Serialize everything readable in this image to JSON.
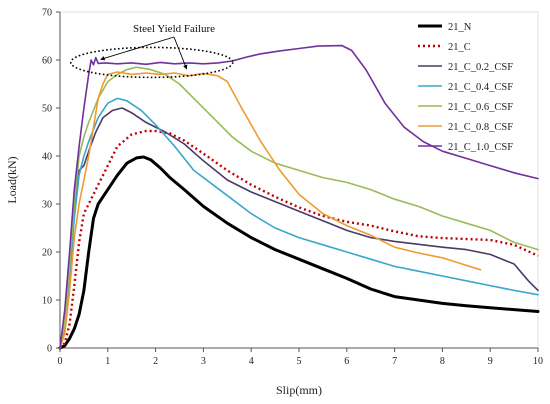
{
  "chart_data": {
    "type": "line",
    "xlabel": "Slip(mm)",
    "ylabel": "Load(kN)",
    "xlim": [
      0,
      10
    ],
    "ylim": [
      0,
      70
    ],
    "xticks": [
      0,
      1,
      2,
      3,
      4,
      5,
      6,
      7,
      8,
      9,
      10
    ],
    "yticks": [
      0,
      10,
      20,
      30,
      40,
      50,
      60,
      70
    ],
    "grid": false,
    "legend_position": "top-right",
    "annotation": {
      "text": "Steel Yield Failure",
      "points": [
        [
          0.85,
          59.5
        ],
        [
          2.65,
          57.5
        ]
      ],
      "ellipse_center": [
        1.92,
        59.5
      ]
    },
    "series": [
      {
        "name": "21_N",
        "color": "#000000",
        "width": 3,
        "dash": "",
        "points": [
          [
            0,
            0
          ],
          [
            0.1,
            0.5
          ],
          [
            0.2,
            2
          ],
          [
            0.3,
            4
          ],
          [
            0.4,
            7
          ],
          [
            0.5,
            12
          ],
          [
            0.6,
            20
          ],
          [
            0.7,
            27
          ],
          [
            0.8,
            30
          ],
          [
            1.0,
            33
          ],
          [
            1.2,
            36
          ],
          [
            1.4,
            38.5
          ],
          [
            1.6,
            39.6
          ],
          [
            1.75,
            39.8
          ],
          [
            1.9,
            39.2
          ],
          [
            2.1,
            37.5
          ],
          [
            2.3,
            35.5
          ],
          [
            2.6,
            33
          ],
          [
            3.0,
            29.5
          ],
          [
            3.5,
            26
          ],
          [
            4.0,
            23
          ],
          [
            4.5,
            20.5
          ],
          [
            5.0,
            18.5
          ],
          [
            5.5,
            16.5
          ],
          [
            6.0,
            14.5
          ],
          [
            6.5,
            12.3
          ],
          [
            7.0,
            10.7
          ],
          [
            7.5,
            10
          ],
          [
            8.0,
            9.3
          ],
          [
            8.5,
            8.8
          ],
          [
            9.0,
            8.4
          ],
          [
            9.5,
            8
          ],
          [
            10.0,
            7.6
          ]
        ]
      },
      {
        "name": "21_C",
        "color": "#c00000",
        "width": 2.4,
        "dash": "2 3",
        "points": [
          [
            0,
            0
          ],
          [
            0.1,
            1
          ],
          [
            0.2,
            5
          ],
          [
            0.3,
            13
          ],
          [
            0.4,
            22
          ],
          [
            0.5,
            28
          ],
          [
            0.6,
            30
          ],
          [
            0.8,
            34
          ],
          [
            1.0,
            38
          ],
          [
            1.2,
            42
          ],
          [
            1.5,
            44.5
          ],
          [
            1.8,
            45.2
          ],
          [
            2.0,
            45.2
          ],
          [
            2.3,
            44.7
          ],
          [
            2.6,
            43.2
          ],
          [
            3.0,
            40.5
          ],
          [
            3.5,
            37
          ],
          [
            4.0,
            34
          ],
          [
            4.5,
            31.5
          ],
          [
            5.0,
            29.3
          ],
          [
            5.5,
            27.5
          ],
          [
            6.0,
            26.3
          ],
          [
            6.5,
            25.5
          ],
          [
            7.0,
            24.3
          ],
          [
            7.5,
            23.3
          ],
          [
            8.0,
            22.9
          ],
          [
            8.5,
            22.7
          ],
          [
            9.0,
            22.5
          ],
          [
            9.5,
            21.5
          ],
          [
            10.0,
            19.2
          ]
        ]
      },
      {
        "name": "21_C_0.2_CSF",
        "color": "#4a3a6a",
        "width": 1.6,
        "dash": "",
        "points": [
          [
            0,
            0
          ],
          [
            0.1,
            4
          ],
          [
            0.2,
            14
          ],
          [
            0.3,
            28
          ],
          [
            0.4,
            37
          ],
          [
            0.5,
            38
          ],
          [
            0.6,
            41
          ],
          [
            0.75,
            45
          ],
          [
            0.9,
            48
          ],
          [
            1.1,
            49.5
          ],
          [
            1.3,
            50
          ],
          [
            1.5,
            49
          ],
          [
            1.8,
            47
          ],
          [
            2.2,
            45
          ],
          [
            2.6,
            42.5
          ],
          [
            3.0,
            39
          ],
          [
            3.5,
            35
          ],
          [
            4.0,
            32.5
          ],
          [
            4.5,
            30.5
          ],
          [
            5.0,
            28.5
          ],
          [
            5.5,
            26.5
          ],
          [
            6.0,
            24.5
          ],
          [
            6.5,
            23
          ],
          [
            7.0,
            22.2
          ],
          [
            7.5,
            21.6
          ],
          [
            8.0,
            21
          ],
          [
            8.5,
            20.5
          ],
          [
            9.0,
            19.5
          ],
          [
            9.5,
            17.5
          ],
          [
            9.8,
            14
          ],
          [
            10.0,
            12
          ]
        ]
      },
      {
        "name": "21_C_0.4_CSF",
        "color": "#3aa6cc",
        "width": 1.6,
        "dash": "",
        "points": [
          [
            0,
            0
          ],
          [
            0.1,
            5
          ],
          [
            0.2,
            15
          ],
          [
            0.3,
            27
          ],
          [
            0.4,
            36
          ],
          [
            0.5,
            40
          ],
          [
            0.6,
            43
          ],
          [
            0.8,
            48
          ],
          [
            1.0,
            51
          ],
          [
            1.2,
            52
          ],
          [
            1.4,
            51.5
          ],
          [
            1.7,
            49.5
          ],
          [
            2.0,
            46.5
          ],
          [
            2.4,
            42
          ],
          [
            2.8,
            37
          ],
          [
            3.2,
            34
          ],
          [
            3.6,
            31
          ],
          [
            4.0,
            28
          ],
          [
            4.5,
            25
          ],
          [
            5.0,
            23
          ],
          [
            5.5,
            21.5
          ],
          [
            6.0,
            20
          ],
          [
            6.5,
            18.5
          ],
          [
            7.0,
            17
          ],
          [
            7.5,
            16
          ],
          [
            8.0,
            15
          ],
          [
            8.5,
            14
          ],
          [
            9.0,
            13
          ],
          [
            9.5,
            12
          ],
          [
            10.0,
            11.1
          ]
        ]
      },
      {
        "name": "21_C_0.6_CSF",
        "color": "#9bbb59",
        "width": 1.6,
        "dash": "",
        "points": [
          [
            0,
            0
          ],
          [
            0.1,
            5
          ],
          [
            0.2,
            17
          ],
          [
            0.3,
            30
          ],
          [
            0.4,
            40
          ],
          [
            0.5,
            44
          ],
          [
            0.6,
            47
          ],
          [
            0.8,
            52
          ],
          [
            1.0,
            55.5
          ],
          [
            1.2,
            57
          ],
          [
            1.4,
            58
          ],
          [
            1.6,
            58.5
          ],
          [
            1.9,
            58
          ],
          [
            2.2,
            57
          ],
          [
            2.5,
            55
          ],
          [
            2.8,
            52
          ],
          [
            3.2,
            48
          ],
          [
            3.6,
            44
          ],
          [
            4.0,
            41
          ],
          [
            4.5,
            38.5
          ],
          [
            5.0,
            37
          ],
          [
            5.5,
            35.5
          ],
          [
            6.0,
            34.5
          ],
          [
            6.5,
            33
          ],
          [
            7.0,
            31
          ],
          [
            7.5,
            29.5
          ],
          [
            8.0,
            27.5
          ],
          [
            8.5,
            26
          ],
          [
            9.0,
            24.5
          ],
          [
            9.5,
            22
          ],
          [
            10.0,
            20.5
          ]
        ]
      },
      {
        "name": "21_C_0.8_CSF",
        "color": "#f09a30",
        "width": 1.6,
        "dash": "",
        "points": [
          [
            0,
            0
          ],
          [
            0.1,
            3
          ],
          [
            0.2,
            12
          ],
          [
            0.3,
            23
          ],
          [
            0.4,
            30
          ],
          [
            0.5,
            35
          ],
          [
            0.6,
            40
          ],
          [
            0.7,
            46
          ],
          [
            0.8,
            52
          ],
          [
            0.9,
            55
          ],
          [
            1.0,
            57
          ],
          [
            1.2,
            57.5
          ],
          [
            1.5,
            57
          ],
          [
            1.8,
            57.3
          ],
          [
            2.1,
            57
          ],
          [
            2.4,
            57.3
          ],
          [
            2.7,
            56.7
          ],
          [
            3.0,
            57.2
          ],
          [
            3.3,
            56.7
          ],
          [
            3.5,
            55.5
          ],
          [
            3.8,
            50
          ],
          [
            4.2,
            43
          ],
          [
            4.6,
            37
          ],
          [
            5.0,
            32
          ],
          [
            5.5,
            28
          ],
          [
            6.0,
            25.5
          ],
          [
            6.5,
            23.5
          ],
          [
            7.0,
            21
          ],
          [
            7.5,
            19.8
          ],
          [
            8.0,
            18.8
          ],
          [
            8.5,
            17.2
          ],
          [
            8.8,
            16.3
          ]
        ]
      },
      {
        "name": "21_C_1.0_CSF",
        "color": "#7030a0",
        "width": 1.6,
        "dash": "",
        "points": [
          [
            0,
            0
          ],
          [
            0.1,
            8
          ],
          [
            0.2,
            20
          ],
          [
            0.3,
            33
          ],
          [
            0.4,
            42
          ],
          [
            0.5,
            50
          ],
          [
            0.6,
            57
          ],
          [
            0.65,
            60
          ],
          [
            0.7,
            59
          ],
          [
            0.75,
            60.5
          ],
          [
            0.8,
            59.3
          ],
          [
            0.95,
            59.4
          ],
          [
            1.2,
            59.2
          ],
          [
            1.5,
            59.4
          ],
          [
            1.8,
            59.1
          ],
          [
            2.1,
            59.5
          ],
          [
            2.4,
            59.2
          ],
          [
            2.7,
            59.4
          ],
          [
            3.0,
            59.2
          ],
          [
            3.3,
            59.4
          ],
          [
            3.6,
            59.8
          ],
          [
            3.9,
            60.6
          ],
          [
            4.2,
            61.3
          ],
          [
            4.6,
            61.9
          ],
          [
            5.0,
            62.4
          ],
          [
            5.4,
            62.9
          ],
          [
            5.9,
            63
          ],
          [
            6.1,
            62
          ],
          [
            6.4,
            58
          ],
          [
            6.8,
            51
          ],
          [
            7.2,
            46
          ],
          [
            7.6,
            43
          ],
          [
            8.0,
            41
          ],
          [
            8.5,
            39.5
          ],
          [
            9.0,
            38
          ],
          [
            9.5,
            36.5
          ],
          [
            10.0,
            35.3
          ]
        ]
      }
    ]
  }
}
